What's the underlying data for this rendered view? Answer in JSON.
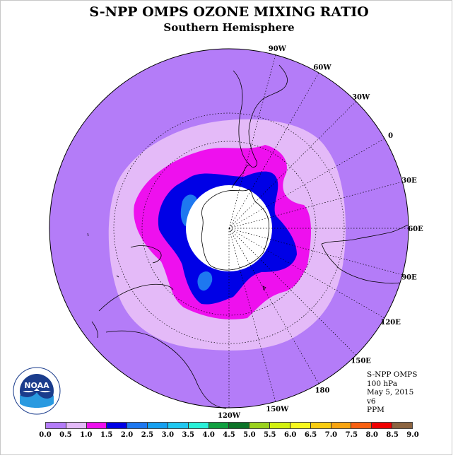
{
  "title": "S-NPP OMPS OZONE MIXING RATIO",
  "subtitle": "Southern Hemisphere",
  "longitude_labels": [
    "90W",
    "60W",
    "30W",
    "0",
    "30E",
    "60E",
    "90E",
    "120E",
    "150E",
    "180",
    "150W",
    "120W"
  ],
  "info": {
    "instrument": "S-NPP OMPS",
    "level": "100 hPa",
    "date": "May 5, 2015",
    "version": "v6",
    "units": "PPM"
  },
  "logo": {
    "text": "NOAA",
    "icon": "noaa-logo"
  },
  "colorbar": {
    "ticks": [
      "0.0",
      "0.5",
      "1.0",
      "1.5",
      "2.0",
      "2.5",
      "3.0",
      "3.5",
      "4.0",
      "4.5",
      "5.0",
      "5.5",
      "6.0",
      "6.5",
      "7.0",
      "7.5",
      "8.0",
      "8.5",
      "9.0"
    ],
    "colors": [
      "#b47cf8",
      "#e4baf8",
      "#ee10ee",
      "#0000e6",
      "#1e78f0",
      "#16a0f0",
      "#20c8f0",
      "#28f0d8",
      "#10a040",
      "#0c7428",
      "#9ad21e",
      "#d2f010",
      "#f8f81e",
      "#f8cc10",
      "#f8a410",
      "#f86010",
      "#f00000",
      "#8c6440"
    ]
  },
  "map_data": {
    "projection": "south polar stereographic",
    "field": "ozone mixing ratio",
    "levels_ppm": {
      "background_ring": "0.0-0.5",
      "light_ring": "0.5-1.0",
      "magenta_ring": "1.0-1.5",
      "blue_ring": "1.5-2.0",
      "cyan_patches": "2.0-2.5",
      "polar_cap": "no data"
    }
  }
}
